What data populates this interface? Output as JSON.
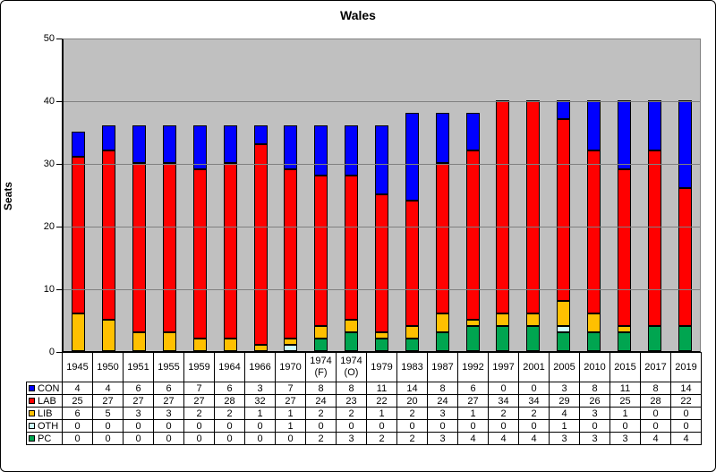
{
  "chart_data": {
    "type": "bar",
    "subtype": "stacked",
    "title": "Wales",
    "xlabel": "",
    "ylabel": "Seats",
    "ylim": [
      0,
      50
    ],
    "yticks": [
      0,
      10,
      20,
      30,
      40,
      50
    ],
    "grid": true,
    "plot_bg_color": "#C0C0C0",
    "gridline_color": "#808080",
    "stack_order_bottom_to_top": [
      "PC",
      "OTH",
      "LIB",
      "LAB",
      "CON"
    ],
    "legend_position": "table-left",
    "categories": [
      "1945",
      "1950",
      "1951",
      "1955",
      "1959",
      "1964",
      "1966",
      "1970",
      "1974\n(F)",
      "1974\n(O)",
      "1979",
      "1983",
      "1987",
      "1992",
      "1997",
      "2001",
      "2005",
      "2010",
      "2015",
      "2017",
      "2019"
    ],
    "series": [
      {
        "name": "CON",
        "color": "#0000FF",
        "values": [
          4,
          4,
          6,
          6,
          7,
          6,
          3,
          7,
          8,
          8,
          11,
          14,
          8,
          6,
          0,
          0,
          3,
          8,
          11,
          8,
          14
        ]
      },
      {
        "name": "LAB",
        "color": "#FF0000",
        "values": [
          25,
          27,
          27,
          27,
          27,
          28,
          32,
          27,
          24,
          23,
          22,
          20,
          24,
          27,
          34,
          34,
          29,
          26,
          25,
          28,
          22
        ]
      },
      {
        "name": "LIB",
        "color": "#FFC000",
        "values": [
          6,
          5,
          3,
          3,
          2,
          2,
          1,
          1,
          2,
          2,
          1,
          2,
          3,
          1,
          2,
          2,
          4,
          3,
          1,
          0,
          0
        ]
      },
      {
        "name": "OTH",
        "color": "#CCFFFF",
        "values": [
          0,
          0,
          0,
          0,
          0,
          0,
          0,
          1,
          0,
          0,
          0,
          0,
          0,
          0,
          0,
          0,
          1,
          0,
          0,
          0,
          0
        ]
      },
      {
        "name": "PC",
        "color": "#00A550",
        "values": [
          0,
          0,
          0,
          0,
          0,
          0,
          0,
          0,
          2,
          3,
          2,
          2,
          3,
          4,
          4,
          4,
          3,
          3,
          3,
          4,
          4
        ]
      }
    ]
  }
}
